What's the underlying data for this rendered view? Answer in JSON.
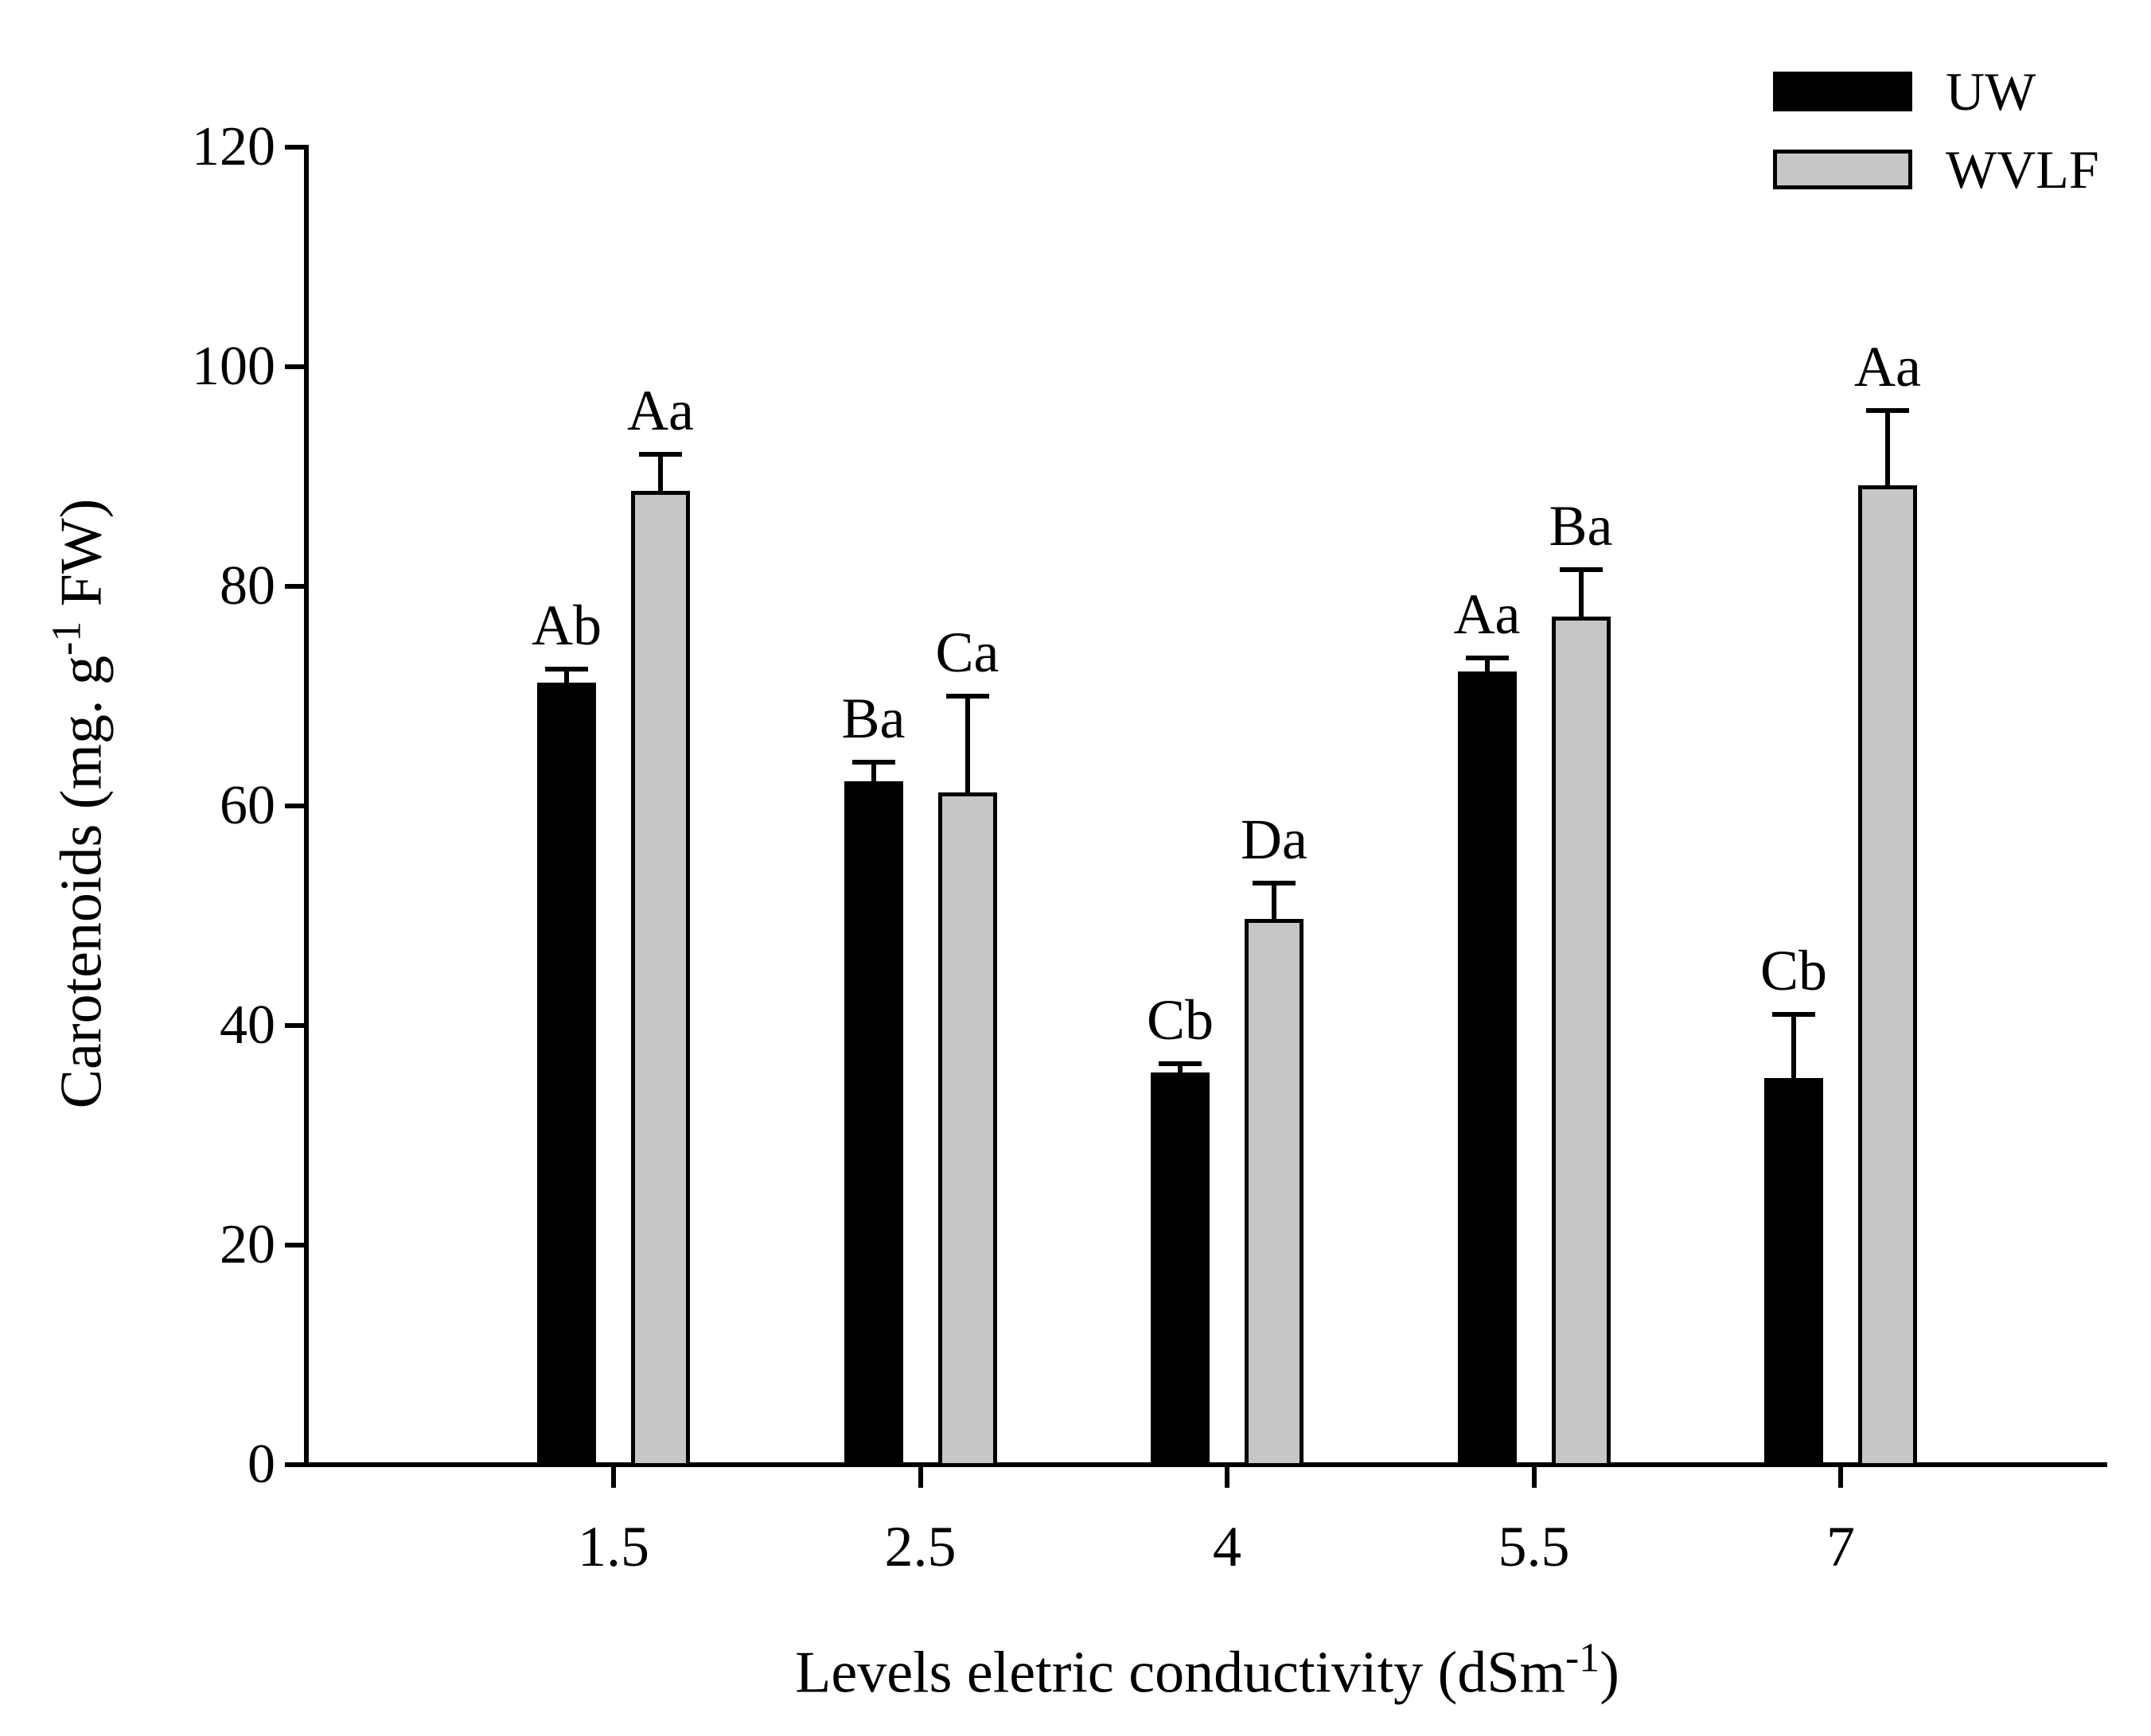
{
  "figure": {
    "background_color": "#ffffff",
    "text_color": "#000000"
  },
  "chart_data": {
    "type": "bar",
    "title": "",
    "xlabel": "Levels eletric conductivity (dSm-1)",
    "xlabel_parts": {
      "pre": "Levels eletric conductivity (dSm",
      "sup": "-1",
      "post": ")"
    },
    "ylabel": "Carotenoids (mg. g-1 FW)",
    "ylabel_parts": {
      "pre": "Carotenoids (mg. g",
      "sup": "-1",
      "post": " FW)"
    },
    "categories": [
      "1.5",
      "2.5",
      "4",
      "5.5",
      "7"
    ],
    "series": [
      {
        "name": "UW",
        "color": "#000000",
        "border_color": "#000000",
        "values": [
          71,
          62,
          35.5,
          72,
          35
        ],
        "errors": [
          1.5,
          2,
          1,
          1.5,
          6
        ],
        "sig_labels": [
          "Ab",
          "Ba",
          "Cb",
          "Aa",
          "Cb"
        ]
      },
      {
        "name": "WVLF",
        "color": "#c6c6c6",
        "border_color": "#000000",
        "values": [
          88.5,
          61,
          49.5,
          77,
          89
        ],
        "errors": [
          3.5,
          9,
          3.5,
          4.5,
          7
        ],
        "sig_labels": [
          "Aa",
          "Ca",
          "Da",
          "Ba",
          "Aa"
        ]
      }
    ],
    "ylim": [
      0,
      120
    ],
    "yticks": [
      0,
      20,
      40,
      60,
      80,
      100,
      120
    ],
    "grid": false,
    "error_bars": "upper",
    "legend_position": "top-right"
  }
}
